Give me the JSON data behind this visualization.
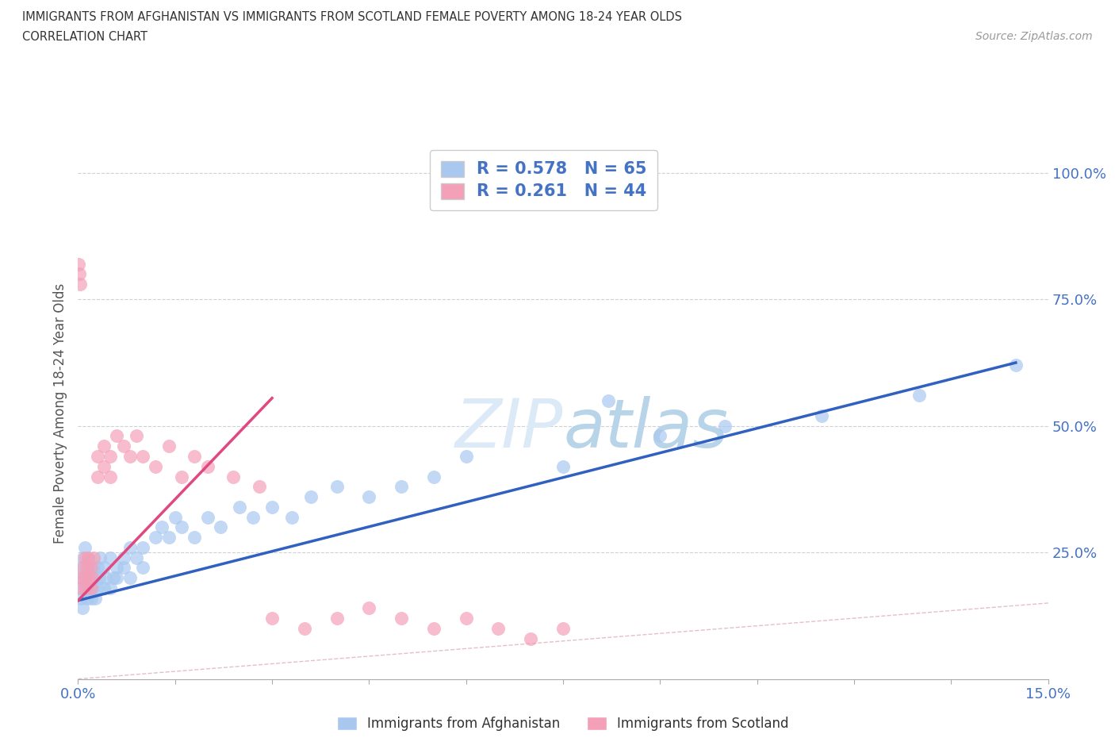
{
  "title_line1": "IMMIGRANTS FROM AFGHANISTAN VS IMMIGRANTS FROM SCOTLAND FEMALE POVERTY AMONG 18-24 YEAR OLDS",
  "title_line2": "CORRELATION CHART",
  "source_text": "Source: ZipAtlas.com",
  "ylabel": "Female Poverty Among 18-24 Year Olds",
  "xlim": [
    0.0,
    0.15
  ],
  "ylim": [
    0.0,
    1.05
  ],
  "color_afghanistan": "#a8c8f0",
  "color_scotland": "#f4a0b8",
  "color_line_afghanistan": "#3060c0",
  "color_line_scotland": "#e04880",
  "color_diagonal": "#d8c8c8",
  "R_afghanistan": 0.578,
  "N_afghanistan": 65,
  "R_scotland": 0.261,
  "N_scotland": 44,
  "legend_text_color": "#4472c4",
  "watermark_color": "#dceaf8",
  "afghanistan_x": [
    0.0002,
    0.0003,
    0.0005,
    0.0006,
    0.0007,
    0.0008,
    0.001,
    0.001,
    0.0012,
    0.0013,
    0.0014,
    0.0015,
    0.0016,
    0.0017,
    0.0018,
    0.002,
    0.002,
    0.0022,
    0.0024,
    0.0025,
    0.0026,
    0.003,
    0.003,
    0.0032,
    0.0034,
    0.004,
    0.004,
    0.0042,
    0.005,
    0.005,
    0.0055,
    0.006,
    0.006,
    0.007,
    0.007,
    0.008,
    0.008,
    0.009,
    0.01,
    0.01,
    0.012,
    0.013,
    0.014,
    0.015,
    0.016,
    0.018,
    0.02,
    0.022,
    0.025,
    0.027,
    0.03,
    0.033,
    0.036,
    0.04,
    0.045,
    0.05,
    0.055,
    0.06,
    0.075,
    0.082,
    0.09,
    0.1,
    0.115,
    0.13,
    0.145
  ],
  "afghanistan_y": [
    0.18,
    0.22,
    0.16,
    0.2,
    0.14,
    0.24,
    0.2,
    0.26,
    0.18,
    0.22,
    0.16,
    0.24,
    0.2,
    0.18,
    0.22,
    0.16,
    0.2,
    0.18,
    0.22,
    0.2,
    0.16,
    0.18,
    0.22,
    0.2,
    0.24,
    0.18,
    0.22,
    0.2,
    0.24,
    0.18,
    0.2,
    0.22,
    0.2,
    0.24,
    0.22,
    0.26,
    0.2,
    0.24,
    0.26,
    0.22,
    0.28,
    0.3,
    0.28,
    0.32,
    0.3,
    0.28,
    0.32,
    0.3,
    0.34,
    0.32,
    0.34,
    0.32,
    0.36,
    0.38,
    0.36,
    0.38,
    0.4,
    0.44,
    0.42,
    0.55,
    0.48,
    0.5,
    0.52,
    0.56,
    0.62
  ],
  "scotland_x": [
    0.0001,
    0.0002,
    0.0003,
    0.0005,
    0.0006,
    0.0008,
    0.001,
    0.001,
    0.0012,
    0.0014,
    0.0015,
    0.0016,
    0.002,
    0.002,
    0.0022,
    0.0024,
    0.003,
    0.003,
    0.004,
    0.004,
    0.005,
    0.005,
    0.006,
    0.007,
    0.008,
    0.009,
    0.01,
    0.012,
    0.014,
    0.016,
    0.018,
    0.02,
    0.024,
    0.028,
    0.03,
    0.035,
    0.04,
    0.045,
    0.05,
    0.055,
    0.06,
    0.065,
    0.07,
    0.075
  ],
  "scotland_y": [
    0.82,
    0.8,
    0.78,
    0.2,
    0.18,
    0.22,
    0.2,
    0.24,
    0.18,
    0.22,
    0.2,
    0.24,
    0.18,
    0.22,
    0.2,
    0.24,
    0.4,
    0.44,
    0.42,
    0.46,
    0.4,
    0.44,
    0.48,
    0.46,
    0.44,
    0.48,
    0.44,
    0.42,
    0.46,
    0.4,
    0.44,
    0.42,
    0.4,
    0.38,
    0.12,
    0.1,
    0.12,
    0.14,
    0.12,
    0.1,
    0.12,
    0.1,
    0.08,
    0.1
  ],
  "afg_line_x0": 0.0,
  "afg_line_x1": 0.145,
  "afg_line_y0": 0.155,
  "afg_line_y1": 0.625,
  "sco_line_x0": 0.0,
  "sco_line_x1": 0.03,
  "sco_line_y0": 0.155,
  "sco_line_y1": 0.555
}
